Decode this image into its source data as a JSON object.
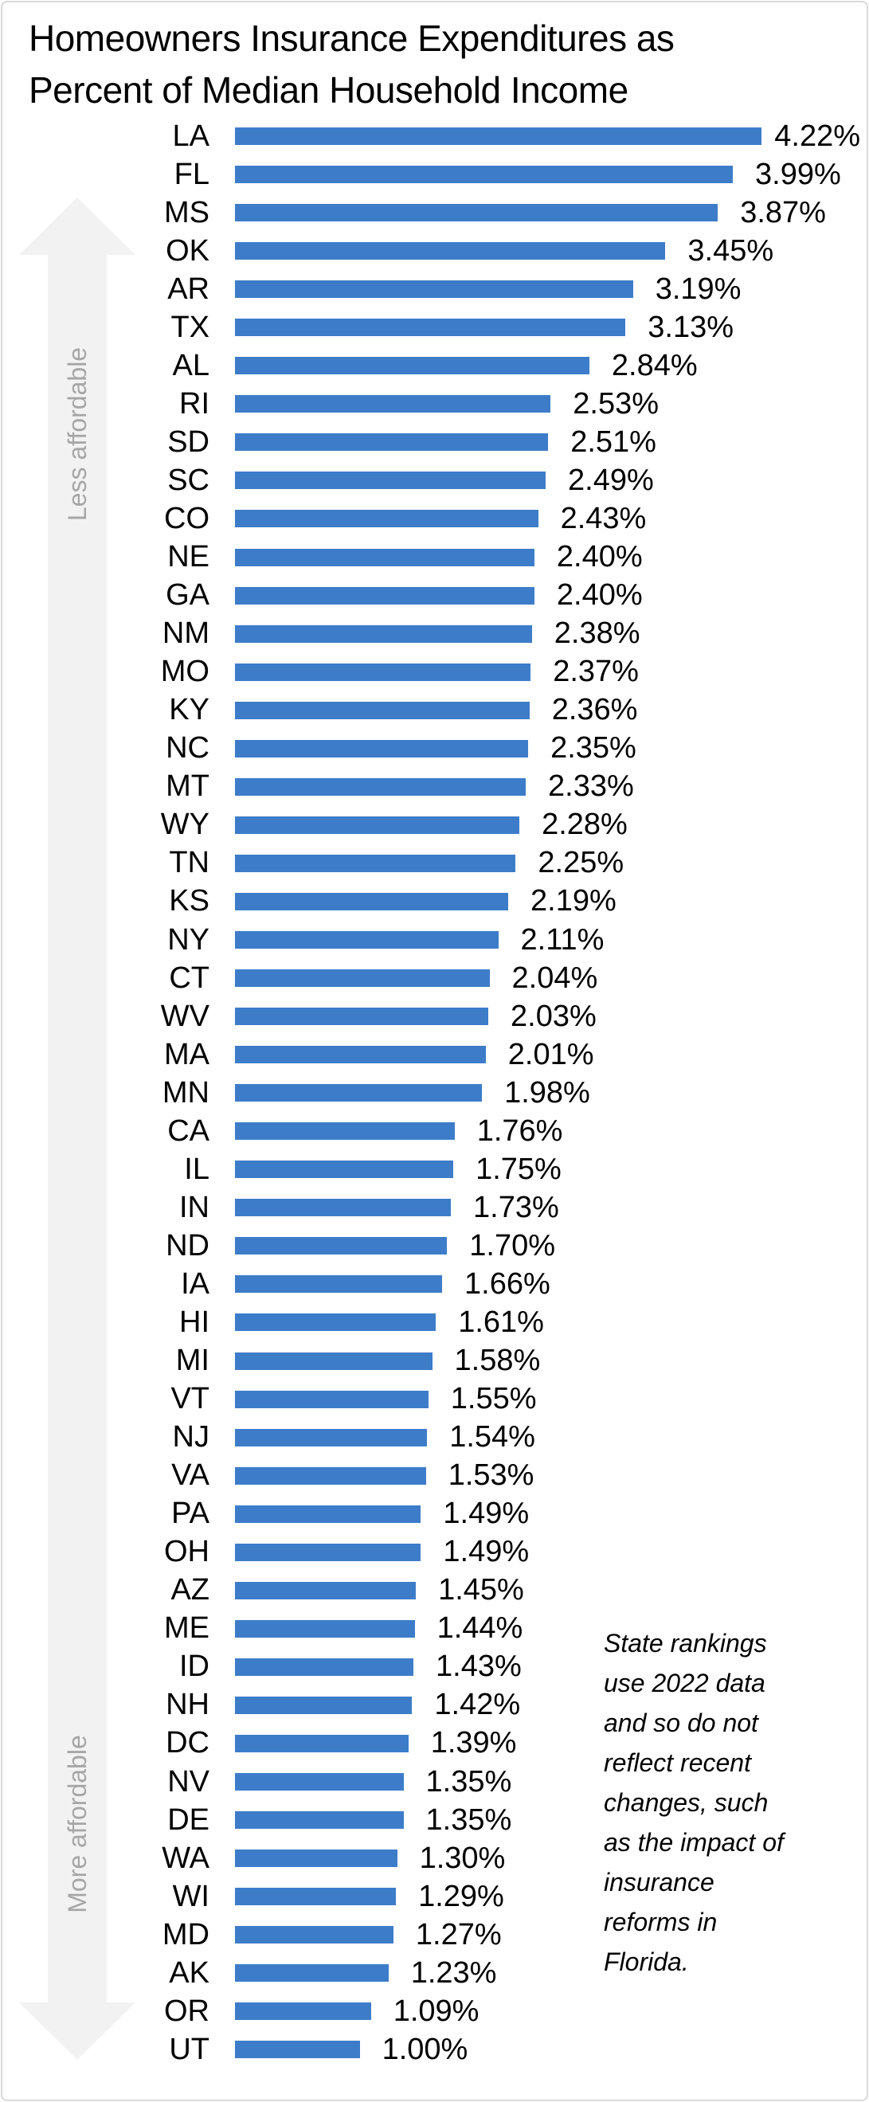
{
  "title": "Homeowners Insurance Expenditures as\nPercent of Median Household Income",
  "arrow": {
    "top_label": "Less affordable",
    "bottom_label": "More affordable",
    "fill_color": "#f2f2f2",
    "label_color": "#a6a6a6"
  },
  "annotation": "State rankings\nuse 2022 data\nand so do not\nreflect recent\nchanges, such\nas the impact of\ninsurance\nreforms in\nFlorida.",
  "colors": {
    "bar": "#3d7cc9",
    "border": "#d9d9d9",
    "text": "#000000"
  },
  "chart_data": {
    "type": "bar",
    "orientation": "horizontal",
    "title": "Homeowners Insurance Expenditures as Percent of Median Household Income",
    "xlabel": "",
    "ylabel": "",
    "xlim": [
      0,
      4.5
    ],
    "grid": false,
    "value_unit": "%",
    "categories": [
      "LA",
      "FL",
      "MS",
      "OK",
      "AR",
      "TX",
      "AL",
      "RI",
      "SD",
      "SC",
      "CO",
      "NE",
      "GA",
      "NM",
      "MO",
      "KY",
      "NC",
      "MT",
      "WY",
      "TN",
      "KS",
      "NY",
      "CT",
      "WV",
      "MA",
      "MN",
      "CA",
      "IL",
      "IN",
      "ND",
      "IA",
      "HI",
      "MI",
      "VT",
      "NJ",
      "VA",
      "PA",
      "OH",
      "AZ",
      "ME",
      "ID",
      "NH",
      "DC",
      "NV",
      "DE",
      "WA",
      "WI",
      "MD",
      "AK",
      "OR",
      "UT"
    ],
    "values": [
      4.22,
      3.99,
      3.87,
      3.45,
      3.19,
      3.13,
      2.84,
      2.53,
      2.51,
      2.49,
      2.43,
      2.4,
      2.4,
      2.38,
      2.37,
      2.36,
      2.35,
      2.33,
      2.28,
      2.25,
      2.19,
      2.11,
      2.04,
      2.03,
      2.01,
      1.98,
      1.76,
      1.75,
      1.73,
      1.7,
      1.66,
      1.61,
      1.58,
      1.55,
      1.54,
      1.53,
      1.49,
      1.49,
      1.45,
      1.44,
      1.43,
      1.42,
      1.39,
      1.35,
      1.35,
      1.3,
      1.29,
      1.27,
      1.23,
      1.09,
      1.0
    ],
    "labels": [
      "4.22%",
      "3.99%",
      "3.87%",
      "3.45%",
      "3.19%",
      "3.13%",
      "2.84%",
      "2.53%",
      "2.51%",
      "2.49%",
      "2.43%",
      "2.40%",
      "2.40%",
      "2.38%",
      "2.37%",
      "2.36%",
      "2.35%",
      "2.33%",
      "2.28%",
      "2.25%",
      "2.19%",
      "2.11%",
      "2.04%",
      "2.03%",
      "2.01%",
      "1.98%",
      "1.76%",
      "1.75%",
      "1.73%",
      "1.70%",
      "1.66%",
      "1.61%",
      "1.58%",
      "1.55%",
      "1.54%",
      "1.53%",
      "1.49%",
      "1.49%",
      "1.45%",
      "1.44%",
      "1.43%",
      "1.42%",
      "1.39%",
      "1.35%",
      "1.35%",
      "1.30%",
      "1.29%",
      "1.27%",
      "1.23%",
      "1.09%",
      "1.00%"
    ]
  }
}
